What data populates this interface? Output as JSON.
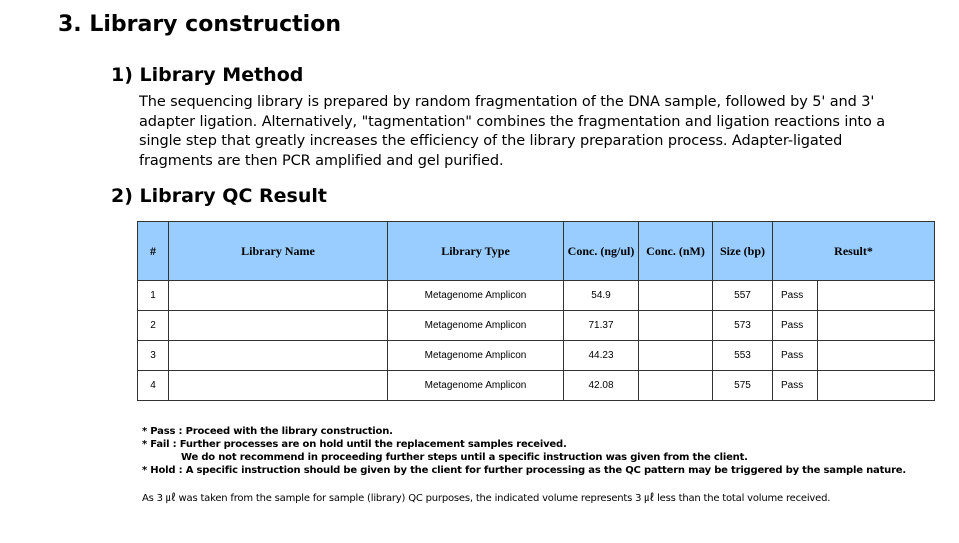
{
  "title": "3. Library construction",
  "method": {
    "heading": "1) Library Method",
    "text": "The sequencing library is prepared by random fragmentation of the DNA sample, followed by 5' and 3' adapter ligation. Alternatively, \"tagmentation\" combines the fragmentation and ligation reactions into a single step that greatly increases the efficiency of the library preparation process. Adapter-ligated fragments are then PCR amplified and gel purified."
  },
  "qc": {
    "heading": "2) Library QC Result",
    "headers": {
      "num": "#",
      "name": "Library Name",
      "type": "Library Type",
      "conc_ng": "Conc. (ng/ul)",
      "conc_nm": "Conc. (nM)",
      "size": "Size (bp)",
      "result": "Result*"
    },
    "rows": [
      {
        "num": "1",
        "name": "",
        "type": "Metagenome Amplicon",
        "conc_ng": "54.9",
        "conc_nm": "",
        "size": "557",
        "result": "Pass"
      },
      {
        "num": "2",
        "name": "",
        "type": "Metagenome Amplicon",
        "conc_ng": "71.37",
        "conc_nm": "",
        "size": "573",
        "result": "Pass"
      },
      {
        "num": "3",
        "name": "",
        "type": "Metagenome Amplicon",
        "conc_ng": "44.23",
        "conc_nm": "",
        "size": "553",
        "result": "Pass"
      },
      {
        "num": "4",
        "name": "",
        "type": "Metagenome Amplicon",
        "conc_ng": "42.08",
        "conc_nm": "",
        "size": "575",
        "result": "Pass"
      }
    ]
  },
  "notes": {
    "pass": "* Pass : Proceed with the library construction.",
    "fail": "* Fail : Further processes are on hold until the replacement samples received.",
    "fail2": "We do not recommend in proceeding further steps until a specific instruction was given from the client.",
    "hold": "* Hold : A specific instruction should be given by the client for further processing as the QC pattern may be triggered by the sample nature.",
    "volume": "As 3 ㎕ was taken from the sample for sample (library) QC purposes, the indicated volume represents 3 ㎕ less than the total volume received."
  },
  "colors": {
    "header_bg": "#99ccff"
  }
}
